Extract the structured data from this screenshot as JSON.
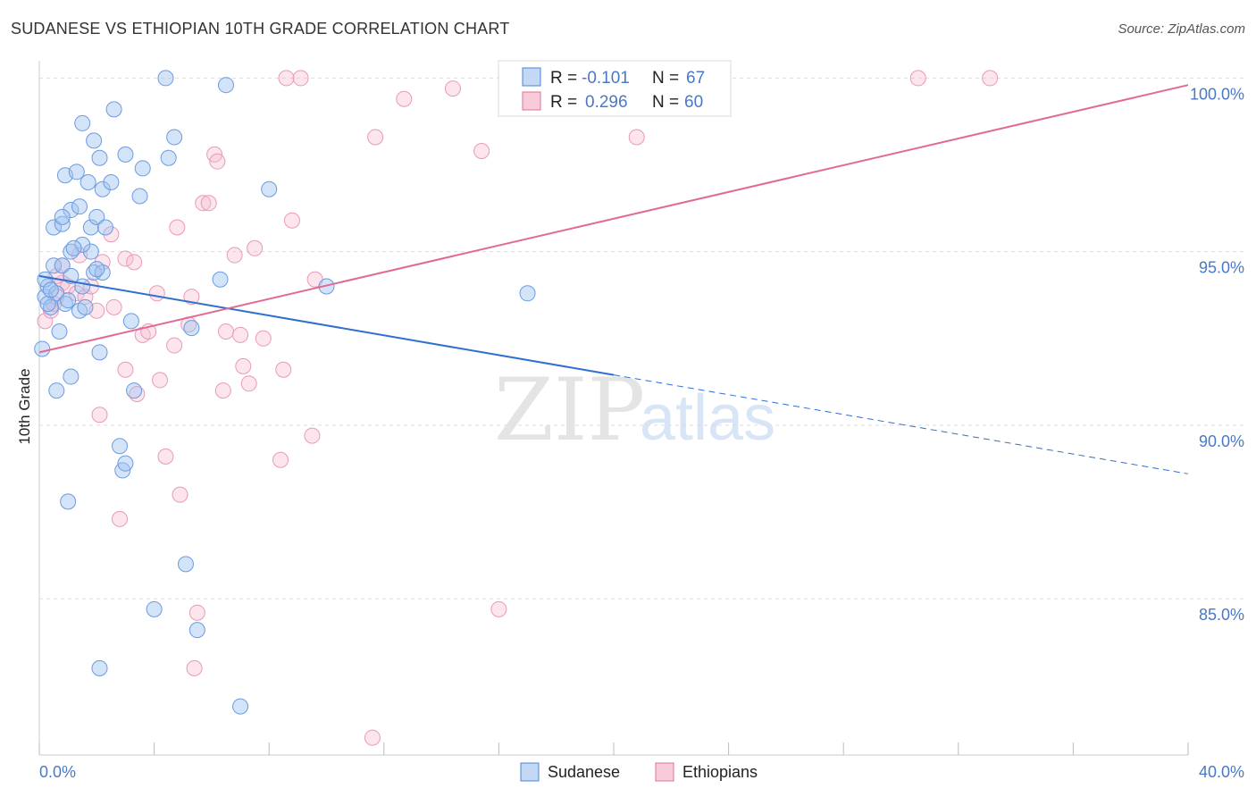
{
  "header": {
    "title": "SUDANESE VS ETHIOPIAN 10TH GRADE CORRELATION CHART",
    "source": "Source: ZipAtlas.com"
  },
  "watermark": {
    "zip": "ZIP",
    "atlas": "atlas"
  },
  "colors": {
    "sudanese": "#4a84d6",
    "ethiopians": "#e0709a",
    "axis_label": "#4a78c8"
  },
  "stats": [
    {
      "r_label": "R =",
      "r_value": "-0.101",
      "n_label": "N =",
      "n_value": "67"
    },
    {
      "r_label": "R =",
      "r_value": "0.296",
      "n_label": "N =",
      "n_value": "60"
    }
  ],
  "chart_data": {
    "type": "scatter",
    "title": "SUDANESE VS ETHIOPIAN 10TH GRADE CORRELATION CHART",
    "xlabel": "",
    "ylabel": "10th Grade",
    "xlim": [
      0,
      40
    ],
    "ylim": [
      80.5,
      100.5
    ],
    "x_tick_labels": [
      "0.0%",
      "40.0%"
    ],
    "y_ticks": [
      85,
      90,
      95,
      100
    ],
    "y_tick_labels": [
      "85.0%",
      "90.0%",
      "95.0%",
      "100.0%"
    ],
    "legend": [
      "Sudanese",
      "Ethiopians"
    ],
    "series": [
      {
        "name": "Sudanese",
        "color": "#4a84d6",
        "r": -0.101,
        "n": 67,
        "trend": {
          "x0": 0,
          "y0": 94.3,
          "x1": 20,
          "y1": 91.45,
          "dash_x1": 40,
          "dash_y1": 88.6
        },
        "points": [
          [
            0.1,
            92.2
          ],
          [
            0.2,
            93.7
          ],
          [
            0.3,
            94.0
          ],
          [
            0.4,
            93.4
          ],
          [
            0.5,
            94.6
          ],
          [
            0.6,
            93.8
          ],
          [
            0.7,
            92.7
          ],
          [
            0.8,
            94.6
          ],
          [
            0.6,
            91.0
          ],
          [
            0.9,
            93.5
          ],
          [
            1.1,
            94.3
          ],
          [
            1.4,
            93.3
          ],
          [
            1.5,
            94.0
          ],
          [
            1.9,
            94.4
          ],
          [
            2.2,
            94.4
          ],
          [
            2.1,
            92.1
          ],
          [
            1.1,
            91.4
          ],
          [
            0.5,
            95.7
          ],
          [
            0.8,
            95.8
          ],
          [
            1.1,
            96.2
          ],
          [
            1.4,
            96.3
          ],
          [
            1.8,
            95.7
          ],
          [
            1.8,
            95.0
          ],
          [
            1.5,
            95.2
          ],
          [
            1.1,
            95.0
          ],
          [
            0.8,
            96.0
          ],
          [
            2.0,
            96.0
          ],
          [
            2.3,
            95.7
          ],
          [
            0.9,
            97.2
          ],
          [
            1.3,
            97.3
          ],
          [
            1.7,
            97.0
          ],
          [
            2.2,
            96.8
          ],
          [
            2.5,
            97.0
          ],
          [
            3.5,
            96.6
          ],
          [
            4.5,
            97.7
          ],
          [
            3.6,
            97.4
          ],
          [
            1.9,
            98.2
          ],
          [
            2.1,
            97.7
          ],
          [
            3.0,
            97.8
          ],
          [
            1.5,
            98.7
          ],
          [
            2.6,
            99.1
          ],
          [
            4.7,
            98.3
          ],
          [
            4.4,
            100.0
          ],
          [
            6.5,
            99.8
          ],
          [
            3.2,
            93.0
          ],
          [
            5.3,
            92.8
          ],
          [
            6.3,
            94.2
          ],
          [
            8.0,
            96.8
          ],
          [
            10.0,
            94.0
          ],
          [
            17.0,
            93.8
          ],
          [
            2.8,
            89.4
          ],
          [
            2.9,
            88.7
          ],
          [
            3.0,
            88.9
          ],
          [
            1.0,
            87.8
          ],
          [
            5.1,
            86.0
          ],
          [
            4.0,
            84.7
          ],
          [
            5.5,
            84.1
          ],
          [
            2.1,
            83.0
          ],
          [
            7.0,
            81.9
          ],
          [
            3.3,
            91.0
          ],
          [
            0.2,
            94.2
          ],
          [
            0.3,
            93.5
          ],
          [
            1.0,
            93.6
          ],
          [
            1.6,
            93.4
          ],
          [
            0.4,
            93.9
          ],
          [
            2.0,
            94.5
          ],
          [
            1.2,
            95.1
          ]
        ]
      },
      {
        "name": "Ethiopians",
        "color": "#e0709a",
        "r": 0.296,
        "n": 60,
        "trend": {
          "x0": 0,
          "y0": 92.1,
          "x1": 40,
          "y1": 99.8
        },
        "points": [
          [
            0.2,
            93.0
          ],
          [
            0.4,
            93.3
          ],
          [
            0.5,
            93.5
          ],
          [
            0.6,
            93.7
          ],
          [
            0.8,
            94.1
          ],
          [
            1.0,
            94.0
          ],
          [
            1.3,
            93.8
          ],
          [
            1.6,
            93.7
          ],
          [
            1.8,
            94.0
          ],
          [
            0.6,
            94.3
          ],
          [
            0.8,
            94.6
          ],
          [
            1.4,
            94.9
          ],
          [
            2.0,
            93.3
          ],
          [
            2.2,
            94.7
          ],
          [
            2.5,
            95.5
          ],
          [
            3.0,
            94.8
          ],
          [
            3.3,
            94.7
          ],
          [
            2.6,
            93.4
          ],
          [
            3.6,
            92.6
          ],
          [
            3.8,
            92.7
          ],
          [
            4.1,
            93.8
          ],
          [
            4.8,
            95.7
          ],
          [
            5.2,
            92.9
          ],
          [
            5.3,
            93.7
          ],
          [
            4.7,
            92.3
          ],
          [
            4.2,
            91.3
          ],
          [
            3.4,
            90.9
          ],
          [
            3.0,
            91.6
          ],
          [
            2.1,
            90.3
          ],
          [
            2.8,
            87.3
          ],
          [
            4.4,
            89.1
          ],
          [
            4.9,
            88.0
          ],
          [
            5.7,
            96.4
          ],
          [
            5.9,
            96.4
          ],
          [
            6.1,
            97.8
          ],
          [
            6.2,
            97.6
          ],
          [
            6.8,
            94.9
          ],
          [
            7.5,
            95.1
          ],
          [
            8.8,
            95.9
          ],
          [
            9.6,
            94.2
          ],
          [
            6.5,
            92.7
          ],
          [
            7.0,
            92.6
          ],
          [
            7.8,
            92.5
          ],
          [
            7.1,
            91.7
          ],
          [
            8.5,
            91.6
          ],
          [
            6.4,
            91.0
          ],
          [
            7.3,
            91.2
          ],
          [
            9.5,
            89.7
          ],
          [
            8.4,
            89.0
          ],
          [
            5.5,
            84.6
          ],
          [
            5.4,
            83.0
          ],
          [
            11.6,
            81.0
          ],
          [
            8.6,
            100.0
          ],
          [
            9.1,
            100.0
          ],
          [
            12.7,
            99.4
          ],
          [
            14.4,
            99.7
          ],
          [
            11.7,
            98.3
          ],
          [
            15.4,
            97.9
          ],
          [
            20.8,
            98.3
          ],
          [
            30.6,
            100.0
          ]
        ]
      }
    ],
    "extra_points_ethiopians": [
      [
        33.1,
        100.0
      ],
      [
        16.0,
        84.7
      ]
    ]
  },
  "axes": {
    "ylabel": "10th Grade",
    "x_min_label": "0.0%",
    "x_max_label": "40.0%"
  },
  "legend": {
    "items": [
      {
        "label": "Sudanese"
      },
      {
        "label": "Ethiopians"
      }
    ]
  }
}
